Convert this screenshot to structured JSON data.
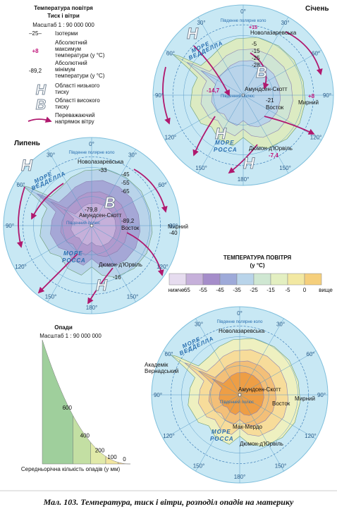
{
  "legend": {
    "title": "Температура повітря",
    "subtitle": "Тиск і вітри",
    "scale": "Масштаб 1 : 90 000 000",
    "items": [
      {
        "symbol": "–25–",
        "label": [
          "Ізотерми"
        ]
      },
      {
        "symbol": "+8",
        "label": [
          "Абсолютний",
          "максимум",
          "температури (у °С)"
        ]
      },
      {
        "symbol": "-89,2",
        "label": [
          "Абсолютний",
          "мінімум",
          "температури (у °С)"
        ]
      },
      {
        "symbol": "Н",
        "label": [
          "Області низького",
          "тиску"
        ]
      },
      {
        "symbol": "В",
        "label": [
          "Області високого",
          "тиску"
        ]
      },
      {
        "label": [
          "Переважаючий",
          "напрямок вітру"
        ]
      }
    ]
  },
  "january": {
    "title": "Січень",
    "meridians": [
      "0°",
      "30°",
      "60°",
      "90°",
      "120°",
      "150°",
      "180°",
      "150°",
      "120°",
      "90°",
      "60°",
      "30°"
    ],
    "circle": "Південне полярне коло",
    "pole": "Південний полюс",
    "stations": [
      "Новолазаревська",
      "Амундсен-Скотт",
      "Восток",
      "Мирний",
      "Дюмон-д'Юрвіль"
    ],
    "seas": [
      [
        "МОРЕ",
        "ВЕДДЕЛЛА"
      ],
      [
        "МОРЕ",
        "РОССА"
      ]
    ],
    "isotherms": [
      "+15",
      "-5",
      "-15",
      "-25",
      "-28"
    ],
    "extremes": [
      "-14,7",
      "-21",
      "+8",
      "-7,4"
    ],
    "pressure": [
      "Н",
      "В",
      "Н",
      "Н"
    ]
  },
  "july": {
    "title": "Липень",
    "meridians": [
      "0°",
      "30°",
      "60°",
      "90°",
      "120°",
      "150°",
      "180°",
      "150°",
      "120°",
      "90°",
      "60°",
      "30°"
    ],
    "circle": "Південне полярне коло",
    "pole": "Південний полюс",
    "stations": [
      "Новолазаревська",
      "Амундсен-Скотт",
      "Восток",
      "Мирний",
      "Дюмон-д'Юрвіль"
    ],
    "seas": [
      [
        "МОРЕ",
        "ВЕДДЕЛЛА"
      ],
      [
        "МОРЕ",
        "РОССА"
      ]
    ],
    "isotherms": [
      "-33",
      "-45",
      "-55",
      "-65"
    ],
    "extremes": [
      "-79,8",
      "-89,2",
      "-40",
      "-16"
    ],
    "pressure": [
      "Н",
      "В",
      "Н"
    ]
  },
  "temperature_scale": {
    "title": [
      "ТЕМПЕРАТУРА ПОВІТРЯ",
      "(у °С)"
    ],
    "below": "нижче",
    "above": "вище",
    "ticks": [
      "-65",
      "-55",
      "-45",
      "-35",
      "-25",
      "-15",
      "-5",
      "0"
    ],
    "colors": [
      "#e6dcef",
      "#c6b0da",
      "#a58dca",
      "#9eaad9",
      "#b9d4ea",
      "#cfe7d2",
      "#e3efc1",
      "#f2e8a2",
      "#f5cf7c"
    ]
  },
  "precipitation": {
    "title": "Опади",
    "scale": "Масштаб 1 : 90 000 000",
    "ticks": [
      "600",
      "400",
      "200",
      "100",
      "0"
    ],
    "caption": "Середньорічна кількість опадів (у мм)",
    "colors": [
      "#9fcf9c",
      "#c3dfa3",
      "#e1eaa9",
      "#f2e6a0",
      "#f6d28a"
    ],
    "map": {
      "meridians": [
        "0°",
        "30°",
        "60°",
        "90°",
        "120°",
        "150°",
        "180°",
        "150°",
        "120°",
        "90°",
        "60°",
        "30°"
      ],
      "circle": "Південне полярне коло",
      "pole": "Південний полюс",
      "stations": [
        "Новолазаревська",
        "Академік",
        "Вернадський",
        "Амундсен-Скотт",
        "Восток",
        "Мирний",
        "Мак-Мердо",
        "Дюмон-д'Юрвіль"
      ],
      "seas": [
        [
          "МОРЕ",
          "ВЕДДЕЛЛА"
        ],
        [
          "МОРЕ",
          "РОССА"
        ]
      ]
    }
  },
  "caption": "Мал. 103. Температура, тиск і вітри, розподіл опадів на материку"
}
